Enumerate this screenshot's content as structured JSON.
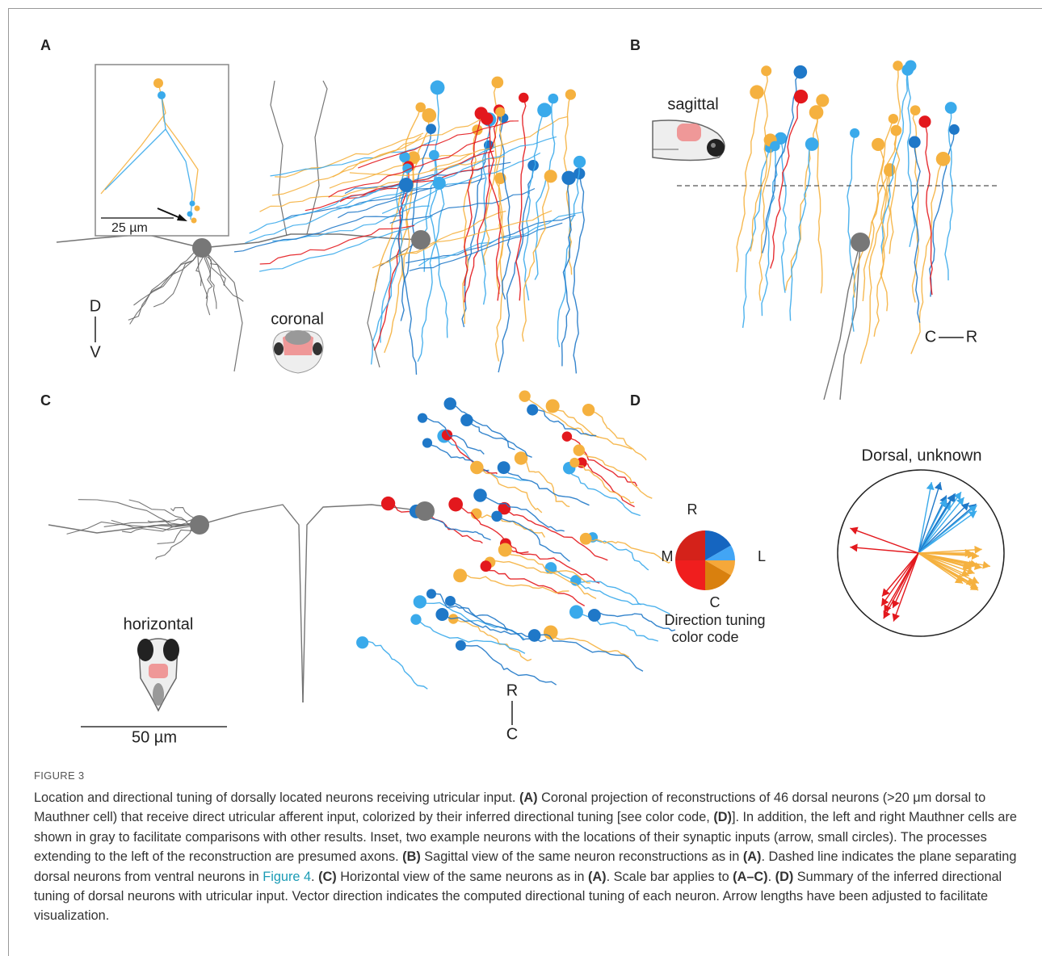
{
  "panel_a": {
    "label": "A",
    "inset_scale": "25 µm",
    "axis_top": "D",
    "axis_bottom": "V",
    "view": "coronal"
  },
  "panel_b": {
    "label": "B",
    "view": "sagittal",
    "axis_left": "C",
    "axis_right": "R"
  },
  "panel_c": {
    "label": "C",
    "view": "horizontal",
    "scale": "50 µm",
    "axis_top": "R",
    "axis_bottom": "C"
  },
  "panel_d": {
    "label": "D",
    "color_code": {
      "top": "R",
      "left": "M",
      "right": "L",
      "bottom": "C",
      "caption": [
        "Direction tuning",
        "color code"
      ]
    },
    "vector_title": "Dorsal, unknown"
  },
  "figure": {
    "label": "FIGURE 3",
    "caption": [
      "Location and directional tuning of dorsally located neurons receiving utricular input. ",
      "(A)",
      " Coronal projection of reconstructions of 46 dorsal neurons (>20 μm dorsal to Mauthner cell) that receive direct utricular afferent input, colorized by their inferred directional tuning [see color code, ",
      "(D)",
      "]. In addition, the left and right Mauthner cells are shown in gray to facilitate comparisons with other results. Inset, two example neurons with the locations of their synaptic inputs (arrow, small circles). The processes extending to the left of the reconstruction are presumed axons. ",
      "(B)",
      " Sagittal view of the same neuron reconstructions as in ",
      "(A)",
      ". Dashed line indicates the plane separating dorsal neurons from ventral neurons in ",
      "Figure 4",
      ". ",
      "(C)",
      " Horizontal view of the same neurons as in ",
      "(A)",
      ". Scale bar applies to ",
      "(A–C)",
      ". ",
      "(D)",
      " Summary of the inferred directional tuning of dorsal neurons with utricular input. Vector direction indicates the computed directional tuning of each neuron. Arrow lengths have been adjusted to facilitate visualization."
    ]
  }
}
